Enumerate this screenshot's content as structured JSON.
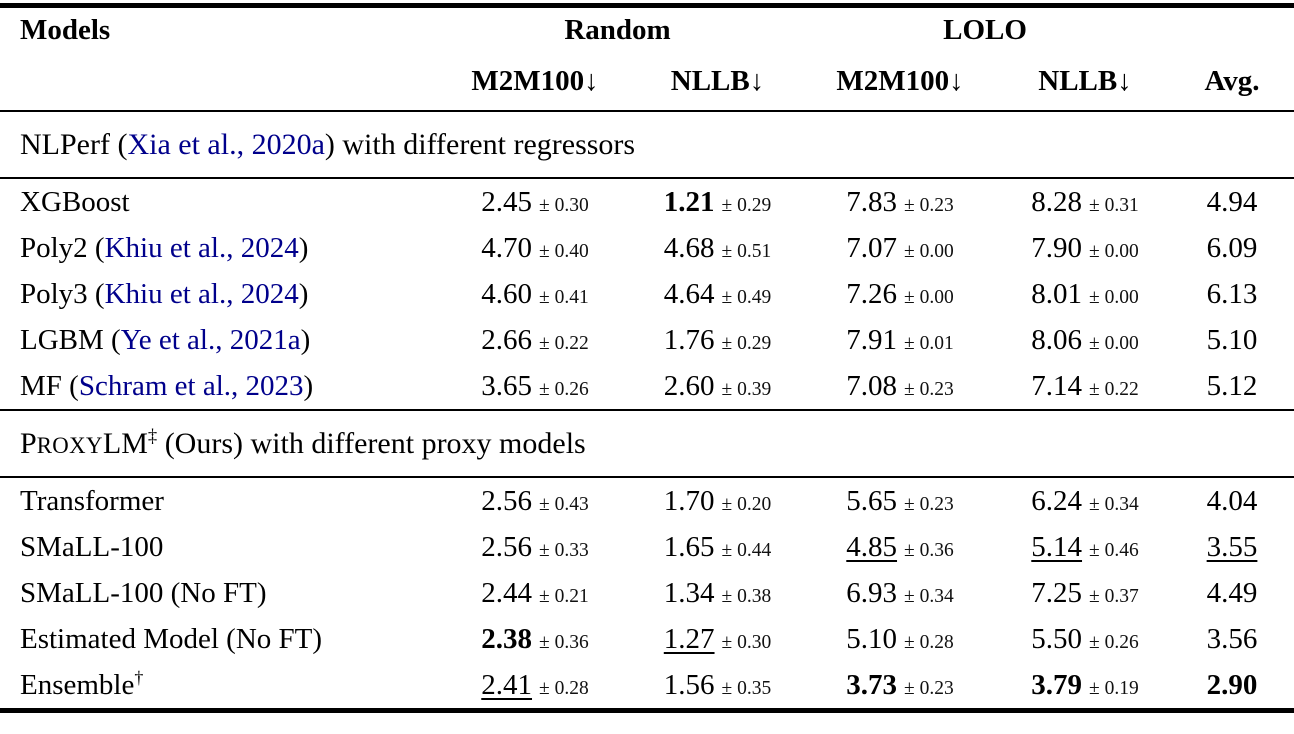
{
  "meta": {
    "background_color": "#ffffff",
    "text_color": "#000000",
    "citation_color": "#00008b",
    "rule_color": "#000000"
  },
  "plusminus": "±",
  "header": {
    "models": "Models",
    "groups": [
      {
        "label": "Random"
      },
      {
        "label": "LOLO"
      }
    ],
    "subcols": [
      {
        "name": "M2M100",
        "arrow": "↓"
      },
      {
        "name": "NLLB",
        "arrow": "↓"
      },
      {
        "name": "M2M100",
        "arrow": "↓"
      },
      {
        "name": "NLLB",
        "arrow": "↓"
      }
    ],
    "avg": "Avg."
  },
  "sections": [
    {
      "title": [
        {
          "t": "NLPerf ("
        },
        {
          "t": "Xia et al., 2020a",
          "cls": "cite"
        },
        {
          "t": ") with different regressors"
        }
      ],
      "rows": [
        {
          "label": [
            {
              "t": "XGBoost"
            }
          ],
          "cells": [
            {
              "value": "2.45",
              "sd": "0.30"
            },
            {
              "value": "1.21",
              "sd": "0.29",
              "fmt": "bold"
            },
            {
              "value": "7.83",
              "sd": "0.23"
            },
            {
              "value": "8.28",
              "sd": "0.31"
            }
          ],
          "avg": {
            "value": "4.94"
          }
        },
        {
          "label": [
            {
              "t": "Poly2  ("
            },
            {
              "t": "Khiu et al., 2024",
              "cls": "cite"
            },
            {
              "t": ")"
            }
          ],
          "cells": [
            {
              "value": "4.70",
              "sd": "0.40"
            },
            {
              "value": "4.68",
              "sd": "0.51"
            },
            {
              "value": "7.07",
              "sd": "0.00"
            },
            {
              "value": "7.90",
              "sd": "0.00"
            }
          ],
          "avg": {
            "value": "6.09"
          }
        },
        {
          "label": [
            {
              "t": "Poly3  ("
            },
            {
              "t": "Khiu et al., 2024",
              "cls": "cite"
            },
            {
              "t": ")"
            }
          ],
          "cells": [
            {
              "value": "4.60",
              "sd": "0.41"
            },
            {
              "value": "4.64",
              "sd": "0.49"
            },
            {
              "value": "7.26",
              "sd": "0.00"
            },
            {
              "value": "8.01",
              "sd": "0.00"
            }
          ],
          "avg": {
            "value": "6.13"
          }
        },
        {
          "label": [
            {
              "t": "LGBM  ("
            },
            {
              "t": "Ye et al., 2021a",
              "cls": "cite"
            },
            {
              "t": ")"
            }
          ],
          "cells": [
            {
              "value": "2.66",
              "sd": "0.22"
            },
            {
              "value": "1.76",
              "sd": "0.29"
            },
            {
              "value": "7.91",
              "sd": "0.01"
            },
            {
              "value": "8.06",
              "sd": "0.00"
            }
          ],
          "avg": {
            "value": "5.10"
          }
        },
        {
          "label": [
            {
              "t": "MF ("
            },
            {
              "t": "Schram et al., 2023",
              "cls": "cite"
            },
            {
              "t": ")"
            }
          ],
          "cells": [
            {
              "value": "3.65",
              "sd": "0.26"
            },
            {
              "value": "2.60",
              "sd": "0.39"
            },
            {
              "value": "7.08",
              "sd": "0.23"
            },
            {
              "value": "7.14",
              "sd": "0.22"
            }
          ],
          "avg": {
            "value": "5.12"
          }
        }
      ]
    },
    {
      "title": [
        {
          "t": "P"
        },
        {
          "t": "ROXY",
          "cls": "sc"
        },
        {
          "t": "LM"
        },
        {
          "t": "‡",
          "cls": "sup"
        },
        {
          "t": " (Ours) with different proxy models"
        }
      ],
      "rows": [
        {
          "label": [
            {
              "t": "Transformer"
            }
          ],
          "cells": [
            {
              "value": "2.56",
              "sd": "0.43"
            },
            {
              "value": "1.70",
              "sd": "0.20"
            },
            {
              "value": "5.65",
              "sd": "0.23"
            },
            {
              "value": "6.24",
              "sd": "0.34"
            }
          ],
          "avg": {
            "value": "4.04"
          }
        },
        {
          "label": [
            {
              "t": "SMaLL-100"
            }
          ],
          "cells": [
            {
              "value": "2.56",
              "sd": "0.33"
            },
            {
              "value": "1.65",
              "sd": "0.44"
            },
            {
              "value": "4.85",
              "sd": "0.36",
              "fmt": "underline"
            },
            {
              "value": "5.14",
              "sd": "0.46",
              "fmt": "underline"
            }
          ],
          "avg": {
            "value": "3.55",
            "fmt": "underline"
          }
        },
        {
          "label": [
            {
              "t": "SMaLL-100 (No FT)"
            }
          ],
          "cells": [
            {
              "value": "2.44",
              "sd": "0.21"
            },
            {
              "value": "1.34",
              "sd": "0.38"
            },
            {
              "value": "6.93",
              "sd": "0.34"
            },
            {
              "value": "7.25",
              "sd": "0.37"
            }
          ],
          "avg": {
            "value": "4.49"
          }
        },
        {
          "label": [
            {
              "t": "Estimated Model (No FT)"
            }
          ],
          "cells": [
            {
              "value": "2.38",
              "sd": "0.36",
              "fmt": "bold"
            },
            {
              "value": "1.27",
              "sd": "0.30",
              "fmt": "underline"
            },
            {
              "value": "5.10",
              "sd": "0.28"
            },
            {
              "value": "5.50",
              "sd": "0.26"
            }
          ],
          "avg": {
            "value": "3.56"
          }
        },
        {
          "label": [
            {
              "t": "Ensemble"
            },
            {
              "t": "†",
              "cls": "sup"
            }
          ],
          "cells": [
            {
              "value": "2.41",
              "sd": "0.28",
              "fmt": "underline"
            },
            {
              "value": "1.56",
              "sd": "0.35"
            },
            {
              "value": "3.73",
              "sd": "0.23",
              "fmt": "bold"
            },
            {
              "value": "3.79",
              "sd": "0.19",
              "fmt": "bold"
            }
          ],
          "avg": {
            "value": "2.90",
            "fmt": "bold"
          }
        }
      ]
    }
  ]
}
